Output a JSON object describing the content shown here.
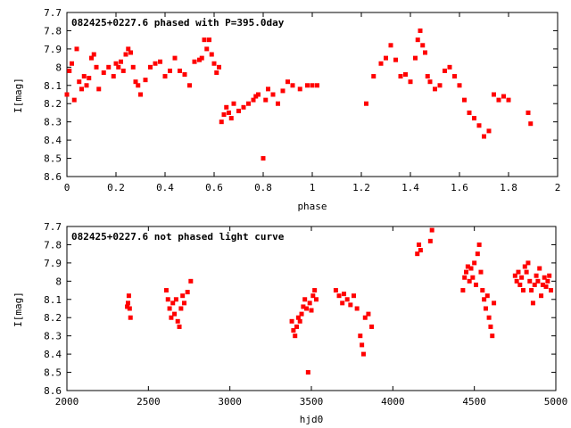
{
  "chart_data": [
    {
      "type": "scatter",
      "title": "082425+0227.6 phased with P=395.0day",
      "xlabel": "phase",
      "ylabel": "I[mag]",
      "xlim": [
        0,
        2
      ],
      "ylim": [
        8.6,
        7.7
      ],
      "y_inverted": true,
      "xticks": [
        "0",
        "0.2",
        "0.4",
        "0.6",
        "0.8",
        "1",
        "1.2",
        "1.4",
        "1.6",
        "1.8",
        "2"
      ],
      "yticks": [
        "7.7",
        "7.8",
        "7.9",
        "8",
        "8.1",
        "8.2",
        "8.3",
        "8.4",
        "8.5",
        "8.6"
      ],
      "marker_color": "#ff0000",
      "grid": false,
      "series": [
        {
          "points": [
            [
              0.0,
              8.15
            ],
            [
              0.01,
              8.02
            ],
            [
              0.02,
              7.98
            ],
            [
              0.03,
              8.18
            ],
            [
              0.04,
              7.9
            ],
            [
              0.05,
              8.08
            ],
            [
              0.06,
              8.12
            ],
            [
              0.07,
              8.05
            ],
            [
              0.08,
              8.1
            ],
            [
              0.09,
              8.06
            ],
            [
              0.1,
              7.95
            ],
            [
              0.11,
              7.93
            ],
            [
              0.12,
              8.0
            ],
            [
              0.13,
              8.12
            ],
            [
              0.15,
              8.03
            ],
            [
              0.17,
              8.0
            ],
            [
              0.19,
              8.05
            ],
            [
              0.2,
              7.98
            ],
            [
              0.21,
              8.0
            ],
            [
              0.22,
              7.97
            ],
            [
              0.23,
              8.02
            ],
            [
              0.24,
              7.93
            ],
            [
              0.25,
              7.9
            ],
            [
              0.26,
              7.92
            ],
            [
              0.27,
              8.0
            ],
            [
              0.28,
              8.08
            ],
            [
              0.29,
              8.1
            ],
            [
              0.3,
              8.15
            ],
            [
              0.32,
              8.07
            ],
            [
              0.34,
              8.0
            ],
            [
              0.36,
              7.98
            ],
            [
              0.38,
              7.97
            ],
            [
              0.4,
              8.05
            ],
            [
              0.42,
              8.02
            ],
            [
              0.44,
              7.95
            ],
            [
              0.46,
              8.02
            ],
            [
              0.48,
              8.04
            ],
            [
              0.5,
              8.1
            ],
            [
              0.52,
              7.97
            ],
            [
              0.54,
              7.96
            ],
            [
              0.55,
              7.95
            ],
            [
              0.56,
              7.85
            ],
            [
              0.57,
              7.9
            ],
            [
              0.58,
              7.85
            ],
            [
              0.59,
              7.93
            ],
            [
              0.6,
              7.98
            ],
            [
              0.61,
              8.03
            ],
            [
              0.62,
              8.0
            ],
            [
              0.63,
              8.3
            ],
            [
              0.64,
              8.26
            ],
            [
              0.65,
              8.22
            ],
            [
              0.66,
              8.25
            ],
            [
              0.67,
              8.28
            ],
            [
              0.68,
              8.2
            ],
            [
              0.7,
              8.24
            ],
            [
              0.72,
              8.22
            ],
            [
              0.74,
              8.2
            ],
            [
              0.76,
              8.18
            ],
            [
              0.77,
              8.16
            ],
            [
              0.78,
              8.15
            ],
            [
              0.8,
              8.5
            ],
            [
              0.81,
              8.18
            ],
            [
              0.82,
              8.12
            ],
            [
              0.84,
              8.15
            ],
            [
              0.86,
              8.2
            ],
            [
              0.88,
              8.13
            ],
            [
              0.9,
              8.08
            ],
            [
              0.92,
              8.1
            ],
            [
              0.95,
              8.12
            ],
            [
              0.98,
              8.1
            ],
            [
              1.0,
              8.1
            ],
            [
              1.02,
              8.1
            ],
            [
              1.22,
              8.2
            ],
            [
              1.25,
              8.05
            ],
            [
              1.28,
              7.98
            ],
            [
              1.3,
              7.95
            ],
            [
              1.32,
              7.88
            ],
            [
              1.34,
              7.96
            ],
            [
              1.36,
              8.05
            ],
            [
              1.38,
              8.04
            ],
            [
              1.4,
              8.08
            ],
            [
              1.42,
              7.95
            ],
            [
              1.43,
              7.85
            ],
            [
              1.44,
              7.8
            ],
            [
              1.45,
              7.88
            ],
            [
              1.46,
              7.92
            ],
            [
              1.47,
              8.05
            ],
            [
              1.48,
              8.08
            ],
            [
              1.5,
              8.12
            ],
            [
              1.52,
              8.1
            ],
            [
              1.54,
              8.02
            ],
            [
              1.56,
              8.0
            ],
            [
              1.58,
              8.05
            ],
            [
              1.6,
              8.1
            ],
            [
              1.62,
              8.18
            ],
            [
              1.64,
              8.25
            ],
            [
              1.66,
              8.28
            ],
            [
              1.68,
              8.32
            ],
            [
              1.7,
              8.38
            ],
            [
              1.72,
              8.35
            ],
            [
              1.74,
              8.15
            ],
            [
              1.76,
              8.18
            ],
            [
              1.78,
              8.16
            ],
            [
              1.8,
              8.18
            ],
            [
              1.88,
              8.25
            ],
            [
              1.89,
              8.31
            ]
          ]
        }
      ]
    },
    {
      "type": "scatter",
      "title": "082425+0227.6 not phased light curve",
      "xlabel": "hjd0",
      "ylabel": "I[mag]",
      "xlim": [
        2000,
        5000
      ],
      "ylim": [
        8.6,
        7.7
      ],
      "y_inverted": true,
      "xticks": [
        "2000",
        "2500",
        "3000",
        "3500",
        "4000",
        "4500",
        "5000"
      ],
      "yticks": [
        "7.7",
        "7.8",
        "7.9",
        "8",
        "8.1",
        "8.2",
        "8.3",
        "8.4",
        "8.5",
        "8.6"
      ],
      "marker_color": "#ff0000",
      "grid": false,
      "series": [
        {
          "points": [
            [
              2370,
              8.14
            ],
            [
              2375,
              8.12
            ],
            [
              2380,
              8.08
            ],
            [
              2385,
              8.15
            ],
            [
              2390,
              8.2
            ],
            [
              2610,
              8.05
            ],
            [
              2620,
              8.1
            ],
            [
              2630,
              8.15
            ],
            [
              2640,
              8.2
            ],
            [
              2650,
              8.12
            ],
            [
              2660,
              8.18
            ],
            [
              2670,
              8.1
            ],
            [
              2680,
              8.22
            ],
            [
              2690,
              8.25
            ],
            [
              2700,
              8.15
            ],
            [
              2710,
              8.08
            ],
            [
              2720,
              8.12
            ],
            [
              2740,
              8.06
            ],
            [
              2760,
              8.0
            ],
            [
              3380,
              8.22
            ],
            [
              3390,
              8.27
            ],
            [
              3400,
              8.3
            ],
            [
              3410,
              8.25
            ],
            [
              3420,
              8.2
            ],
            [
              3430,
              8.22
            ],
            [
              3440,
              8.18
            ],
            [
              3450,
              8.14
            ],
            [
              3460,
              8.1
            ],
            [
              3470,
              8.15
            ],
            [
              3480,
              8.5
            ],
            [
              3490,
              8.12
            ],
            [
              3500,
              8.16
            ],
            [
              3510,
              8.08
            ],
            [
              3520,
              8.05
            ],
            [
              3530,
              8.1
            ],
            [
              3650,
              8.05
            ],
            [
              3670,
              8.08
            ],
            [
              3690,
              8.12
            ],
            [
              3700,
              8.07
            ],
            [
              3720,
              8.1
            ],
            [
              3740,
              8.13
            ],
            [
              3760,
              8.08
            ],
            [
              3780,
              8.15
            ],
            [
              3800,
              8.3
            ],
            [
              3810,
              8.35
            ],
            [
              3820,
              8.4
            ],
            [
              3830,
              8.2
            ],
            [
              3850,
              8.18
            ],
            [
              3870,
              8.25
            ],
            [
              4150,
              7.85
            ],
            [
              4160,
              7.8
            ],
            [
              4170,
              7.83
            ],
            [
              4230,
              7.78
            ],
            [
              4240,
              7.72
            ],
            [
              4430,
              8.05
            ],
            [
              4440,
              7.98
            ],
            [
              4450,
              7.95
            ],
            [
              4460,
              7.92
            ],
            [
              4470,
              8.0
            ],
            [
              4480,
              7.93
            ],
            [
              4490,
              7.98
            ],
            [
              4500,
              7.9
            ],
            [
              4510,
              8.02
            ],
            [
              4520,
              7.85
            ],
            [
              4530,
              7.8
            ],
            [
              4540,
              7.95
            ],
            [
              4550,
              8.05
            ],
            [
              4560,
              8.1
            ],
            [
              4570,
              8.15
            ],
            [
              4580,
              8.08
            ],
            [
              4590,
              8.2
            ],
            [
              4600,
              8.25
            ],
            [
              4610,
              8.3
            ],
            [
              4620,
              8.12
            ],
            [
              4750,
              7.97
            ],
            [
              4760,
              8.0
            ],
            [
              4770,
              7.95
            ],
            [
              4780,
              8.02
            ],
            [
              4790,
              7.98
            ],
            [
              4800,
              8.05
            ],
            [
              4810,
              7.92
            ],
            [
              4820,
              7.95
            ],
            [
              4830,
              7.9
            ],
            [
              4840,
              8.0
            ],
            [
              4850,
              8.05
            ],
            [
              4860,
              8.12
            ],
            [
              4870,
              8.02
            ],
            [
              4880,
              7.97
            ],
            [
              4890,
              8.0
            ],
            [
              4900,
              7.93
            ],
            [
              4910,
              8.08
            ],
            [
              4920,
              8.02
            ],
            [
              4930,
              7.98
            ],
            [
              4940,
              8.03
            ],
            [
              4950,
              8.0
            ],
            [
              4960,
              7.97
            ],
            [
              4970,
              8.05
            ]
          ]
        }
      ]
    }
  ]
}
